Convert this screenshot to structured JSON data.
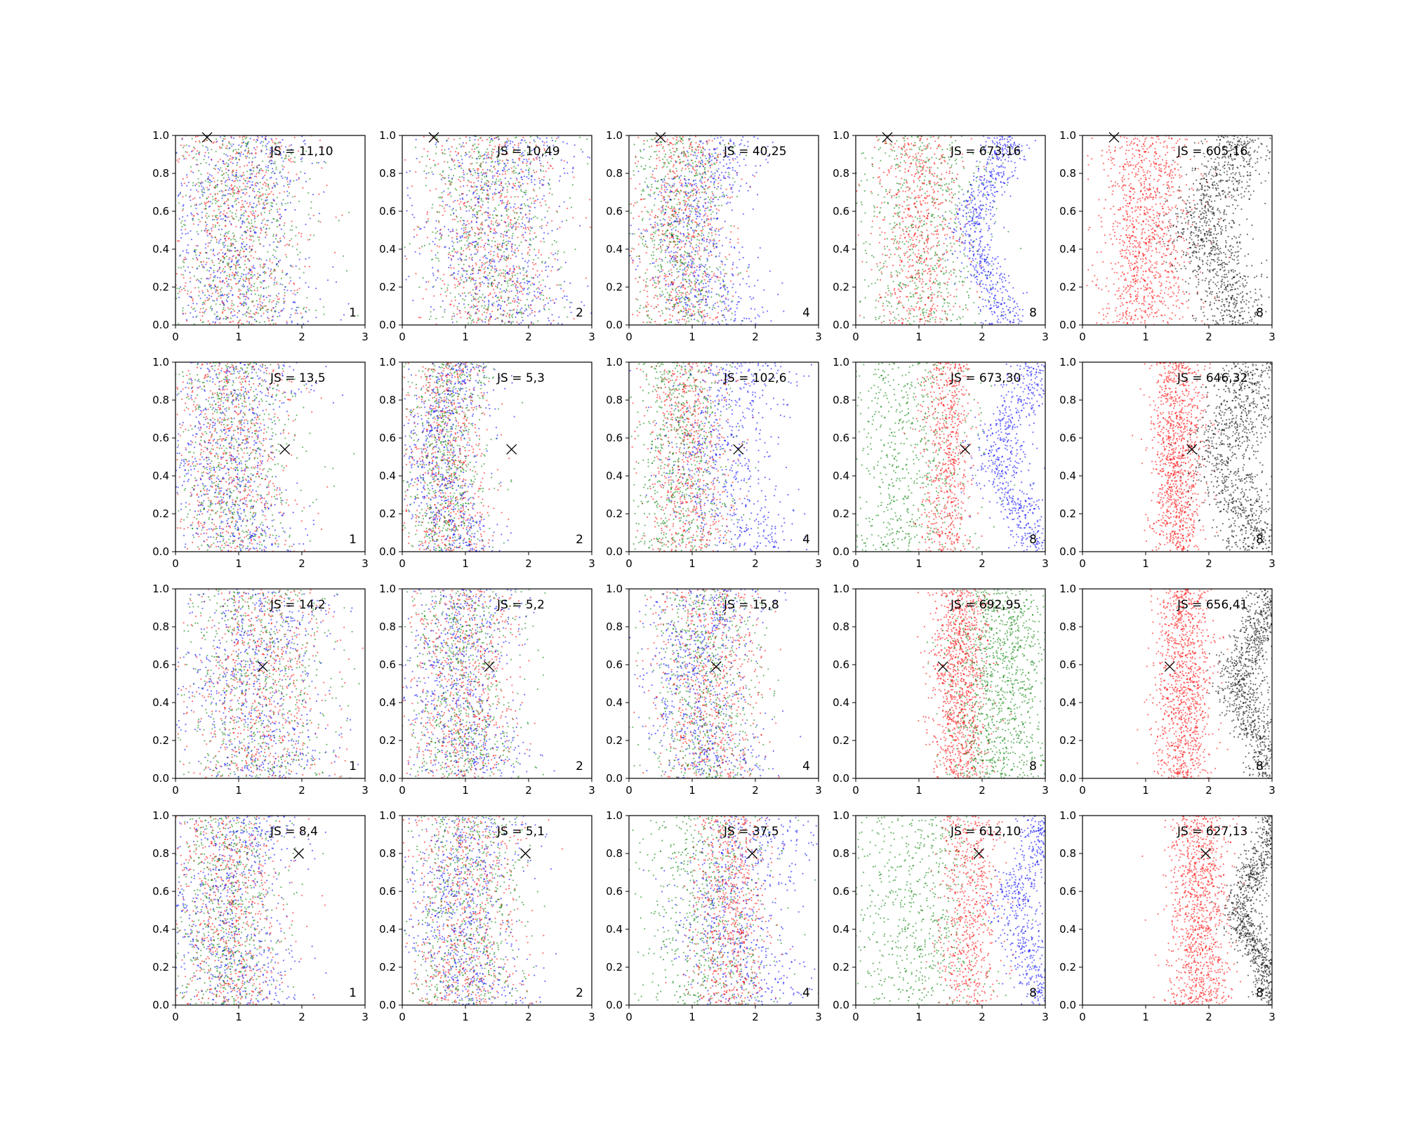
{
  "chart_data": {
    "type": "scatter",
    "layout": "grid",
    "rows": 4,
    "cols": 5,
    "xlim": [
      0,
      3
    ],
    "ylim": [
      0,
      1
    ],
    "xticks": [
      "0",
      "1",
      "2",
      "3"
    ],
    "yticks": [
      "0.0",
      "0.2",
      "0.4",
      "0.6",
      "0.8",
      "1.0"
    ],
    "grid": false,
    "colors": {
      "red": "#ff0000",
      "green": "#008000",
      "blue": "#0000ff",
      "black": "#000000"
    },
    "marker_positions": [
      [
        0.5,
        0.99
      ],
      [
        1.73,
        0.54
      ],
      [
        1.38,
        0.59
      ],
      [
        1.95,
        0.8
      ]
    ],
    "panels": [
      [
        {
          "label": "JS = 11,10",
          "corner": "1",
          "series": [
            "red",
            "green",
            "blue"
          ],
          "centers": {
            "red": 1.0,
            "green": 1.0,
            "blue": 1.0
          },
          "spread": {
            "red": 0.55,
            "green": 0.55,
            "blue": 0.6
          }
        },
        {
          "label": "JS = 10,49",
          "corner": "2",
          "series": [
            "red",
            "green",
            "blue"
          ],
          "centers": {
            "red": 1.4,
            "green": 1.4,
            "blue": 1.5
          },
          "spread": {
            "red": 0.55,
            "green": 0.55,
            "blue": 0.6
          }
        },
        {
          "label": "JS = 40,25",
          "corner": "4",
          "series": [
            "red",
            "green",
            "blue"
          ],
          "centers": {
            "red": 0.8,
            "green": 0.8,
            "blue": 1.2
          },
          "spread": {
            "red": 0.4,
            "green": 0.4,
            "blue": 0.4
          }
        },
        {
          "label": "JS = 673,16",
          "corner": "8",
          "series": [
            "green",
            "red",
            "blue"
          ],
          "centers": {
            "red": 1.0,
            "green": 1.1,
            "blue": 2.1
          },
          "spread": {
            "red": 0.35,
            "green": 0.55,
            "blue": 0.18
          }
        },
        {
          "label": "JS = 605,16",
          "corner": "8",
          "series": [
            "red",
            "black"
          ],
          "centers": {
            "red": 1.0,
            "black": 2.2
          },
          "spread": {
            "red": 0.35,
            "black": 0.3
          }
        }
      ],
      [
        {
          "label": "JS = 13,5",
          "corner": "1",
          "series": [
            "red",
            "green",
            "blue"
          ],
          "centers": {
            "red": 0.9,
            "green": 0.9,
            "blue": 0.9
          },
          "spread": {
            "red": 0.5,
            "green": 0.5,
            "blue": 0.5
          }
        },
        {
          "label": "JS = 5,3",
          "corner": "2",
          "series": [
            "red",
            "green",
            "blue"
          ],
          "centers": {
            "red": 0.7,
            "green": 0.7,
            "blue": 0.7
          },
          "spread": {
            "red": 0.35,
            "green": 0.35,
            "blue": 0.35
          }
        },
        {
          "label": "JS = 102,6",
          "corner": "4",
          "series": [
            "red",
            "green",
            "blue"
          ],
          "centers": {
            "red": 0.9,
            "green": 0.8,
            "blue": 1.6
          },
          "spread": {
            "red": 0.35,
            "green": 0.4,
            "blue": 0.5
          }
        },
        {
          "label": "JS = 673,30",
          "corner": "8",
          "series": [
            "green",
            "red",
            "blue"
          ],
          "centers": {
            "red": 1.45,
            "green": 0.8,
            "blue": 2.55
          },
          "spread": {
            "red": 0.2,
            "green": 0.55,
            "blue": 0.22
          }
        },
        {
          "label": "JS = 646,32",
          "corner": "8",
          "series": [
            "red",
            "black"
          ],
          "centers": {
            "red": 1.5,
            "black": 2.5
          },
          "spread": {
            "red": 0.2,
            "black": 0.3
          }
        }
      ],
      [
        {
          "label": "JS = 14,2",
          "corner": "1",
          "series": [
            "red",
            "green",
            "blue"
          ],
          "centers": {
            "red": 1.3,
            "green": 1.3,
            "blue": 1.3
          },
          "spread": {
            "red": 0.6,
            "green": 0.6,
            "blue": 0.6
          }
        },
        {
          "label": "JS = 5,2",
          "corner": "2",
          "series": [
            "red",
            "green",
            "blue"
          ],
          "centers": {
            "red": 0.95,
            "green": 0.95,
            "blue": 0.95
          },
          "spread": {
            "red": 0.45,
            "green": 0.45,
            "blue": 0.45
          }
        },
        {
          "label": "JS = 15,8",
          "corner": "4",
          "series": [
            "red",
            "green",
            "blue"
          ],
          "centers": {
            "red": 1.2,
            "green": 1.2,
            "blue": 1.2
          },
          "spread": {
            "red": 0.45,
            "green": 0.45,
            "blue": 0.45
          }
        },
        {
          "label": "JS = 692,95",
          "corner": "8",
          "series": [
            "red",
            "green"
          ],
          "centers": {
            "red": 1.65,
            "green": 2.3
          },
          "spread": {
            "red": 0.22,
            "green": 0.4
          }
        },
        {
          "label": "JS = 656,41",
          "corner": "8",
          "series": [
            "red",
            "black"
          ],
          "centers": {
            "red": 1.6,
            "black": 2.75
          },
          "spread": {
            "red": 0.22,
            "black": 0.2
          }
        }
      ],
      [
        {
          "label": "JS = 8,4",
          "corner": "1",
          "series": [
            "red",
            "green",
            "blue"
          ],
          "centers": {
            "red": 0.85,
            "green": 0.85,
            "blue": 0.9
          },
          "spread": {
            "red": 0.45,
            "green": 0.45,
            "blue": 0.5
          }
        },
        {
          "label": "JS = 5,1",
          "corner": "2",
          "series": [
            "red",
            "green",
            "blue"
          ],
          "centers": {
            "red": 1.0,
            "green": 1.0,
            "blue": 1.0
          },
          "spread": {
            "red": 0.45,
            "green": 0.45,
            "blue": 0.45
          }
        },
        {
          "label": "JS = 37,5",
          "corner": "4",
          "series": [
            "green",
            "blue",
            "red"
          ],
          "centers": {
            "red": 1.6,
            "green": 1.2,
            "blue": 1.8
          },
          "spread": {
            "red": 0.3,
            "green": 0.55,
            "blue": 0.5
          }
        },
        {
          "label": "JS = 612,10",
          "corner": "8",
          "series": [
            "green",
            "red",
            "blue"
          ],
          "centers": {
            "red": 1.8,
            "green": 1.0,
            "blue": 2.75
          },
          "spread": {
            "red": 0.25,
            "green": 0.55,
            "blue": 0.2
          }
        },
        {
          "label": "JS = 627,13",
          "corner": "8",
          "series": [
            "red",
            "black"
          ],
          "centers": {
            "red": 1.85,
            "black": 2.8
          },
          "spread": {
            "red": 0.25,
            "black": 0.15
          }
        }
      ]
    ]
  }
}
